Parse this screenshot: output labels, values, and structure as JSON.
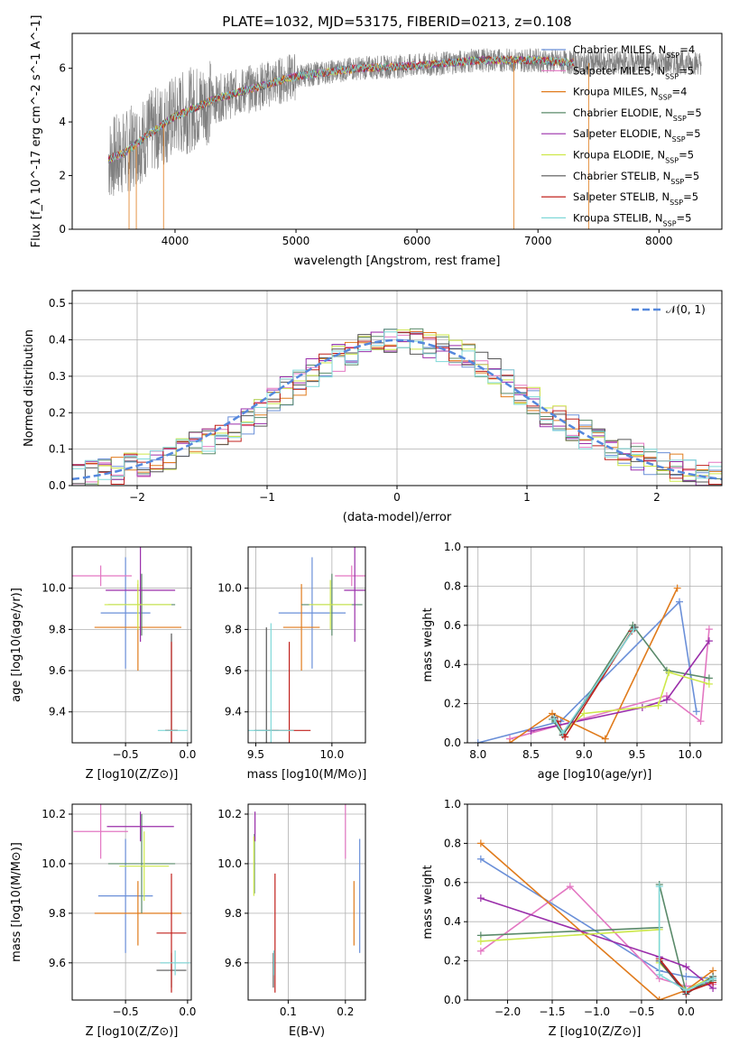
{
  "figure_title": "PLATE=1032, MJD=53175, FIBERID=0213, z=0.108",
  "colors": {
    "Chabrier MILES": "#6a8fd8",
    "Salpeter MILES": "#e377c2",
    "Kroupa MILES": "#e07b1c",
    "Chabrier ELODIE": "#5a8a6a",
    "Salpeter ELODIE": "#9a2eaa",
    "Kroupa ELODIE": "#cde84a",
    "Chabrier STELIB": "#555555",
    "Salpeter STELIB": "#c0201c",
    "Kroupa STELIB": "#7fd8d8",
    "normal_curve": "#5588dd",
    "grid": "#b0b0b0"
  },
  "chart_data": [
    {
      "id": "spectrum",
      "type": "line",
      "xlabel": "wavelength [Angstrom, rest frame]",
      "ylabel": "Flux [f_λ 10^-17 erg cm^-2 s^-1 A^-1]",
      "xlim": [
        3150,
        8520
      ],
      "ylim": [
        0,
        7.3
      ],
      "xticks": [
        4000,
        5000,
        6000,
        7000,
        8000
      ],
      "yticks": [
        0,
        2,
        4,
        6
      ],
      "legend_position": "right",
      "legend": [
        {
          "name": "Chabrier MILES",
          "nssp": "4"
        },
        {
          "name": "Salpeter MILES",
          "nssp": "5"
        },
        {
          "name": "Kroupa MILES",
          "nssp": "4"
        },
        {
          "name": "Chabrier ELODIE",
          "nssp": "5"
        },
        {
          "name": "Salpeter ELODIE",
          "nssp": "5"
        },
        {
          "name": "Kroupa ELODIE",
          "nssp": "5"
        },
        {
          "name": "Chabrier STELIB",
          "nssp": "5"
        },
        {
          "name": "Salpeter STELIB",
          "nssp": "5"
        },
        {
          "name": "Kroupa STELIB",
          "nssp": "5"
        }
      ],
      "continuum": {
        "x": [
          3450,
          3600,
          3800,
          4000,
          4300,
          4600,
          5000,
          5500,
          6000,
          6500,
          7000,
          7300
        ],
        "y": [
          2.6,
          2.9,
          3.6,
          4.2,
          4.8,
          5.2,
          5.7,
          6.0,
          6.1,
          6.3,
          6.3,
          6.2
        ]
      },
      "data_x_range": [
        3450,
        8350
      ]
    },
    {
      "id": "residuals",
      "type": "bar",
      "xlabel": "(data-model)/error",
      "ylabel": "Normed distribution",
      "xlim": [
        -2.5,
        2.5
      ],
      "ylim": [
        0,
        0.535
      ],
      "xticks": [
        -2,
        -1,
        0,
        1,
        2
      ],
      "yticks": [
        0.0,
        0.1,
        0.2,
        0.3,
        0.4,
        0.5
      ],
      "bin_width": 0.1,
      "legend": "𝒩(0, 1)",
      "hist_values": [
        0.03,
        0.03,
        0.04,
        0.04,
        0.05,
        0.06,
        0.07,
        0.08,
        0.09,
        0.11,
        0.12,
        0.14,
        0.16,
        0.18,
        0.2,
        0.23,
        0.26,
        0.28,
        0.31,
        0.33,
        0.35,
        0.36,
        0.38,
        0.39,
        0.4,
        0.4,
        0.4,
        0.39,
        0.38,
        0.36,
        0.35,
        0.33,
        0.31,
        0.28,
        0.26,
        0.23,
        0.2,
        0.18,
        0.16,
        0.14,
        0.12,
        0.11,
        0.09,
        0.08,
        0.07,
        0.06,
        0.05,
        0.04,
        0.04,
        0.03
      ]
    },
    {
      "id": "age_vs_Z",
      "type": "scatter",
      "xlabel": "Z [log10(Z/Z⊙)]",
      "ylabel": "age  [log10(age/yr)]",
      "xlim": [
        -0.93,
        0.03
      ],
      "ylim": [
        9.25,
        10.2
      ],
      "xticks": [
        -0.5,
        0.0
      ],
      "yticks": [
        9.4,
        9.6,
        9.8,
        10.0
      ],
      "points": [
        {
          "series": "Chabrier MILES",
          "x": -0.5,
          "y": 9.88,
          "xerr": 0.2,
          "yerr": 0.27
        },
        {
          "series": "Salpeter MILES",
          "x": -0.7,
          "y": 10.06,
          "xerr": 0.25,
          "yerr": 0.05
        },
        {
          "series": "Kroupa MILES",
          "x": -0.4,
          "y": 9.81,
          "xerr": 0.35,
          "yerr": 0.21
        },
        {
          "series": "Chabrier ELODIE",
          "x": -0.37,
          "y": 9.92,
          "xerr": 0.27,
          "yerr": 0.15
        },
        {
          "series": "Salpeter ELODIE",
          "x": -0.38,
          "y": 9.99,
          "xerr": 0.28,
          "yerr": 0.25
        },
        {
          "series": "Kroupa ELODIE",
          "x": -0.4,
          "y": 9.92,
          "xerr": 0.27,
          "yerr": 0.12
        },
        {
          "series": "Chabrier STELIB",
          "x": -0.13,
          "y": 9.31,
          "xerr": 0.05,
          "yerr": 0.47
        },
        {
          "series": "Salpeter STELIB",
          "x": -0.13,
          "y": 9.31,
          "xerr": 0.05,
          "yerr": 0.43
        },
        {
          "series": "Kroupa STELIB",
          "x": -0.12,
          "y": 9.31,
          "xerr": 0.12,
          "yerr": 0.0
        }
      ]
    },
    {
      "id": "age_vs_mass",
      "type": "scatter",
      "xlabel": "mass [log10(M/M⊙)]",
      "ylabel": "",
      "xlim": [
        9.45,
        10.22
      ],
      "ylim": [
        9.25,
        10.2
      ],
      "xticks": [
        9.5,
        10.0
      ],
      "yticks": [
        9.4,
        9.6,
        9.8,
        10.0
      ],
      "points": [
        {
          "series": "Chabrier MILES",
          "x": 9.87,
          "y": 9.88,
          "xerr": 0.22,
          "yerr": 0.27
        },
        {
          "series": "Salpeter MILES",
          "x": 10.13,
          "y": 10.06,
          "xerr": 0.11,
          "yerr": 0.05
        },
        {
          "series": "Kroupa MILES",
          "x": 9.8,
          "y": 9.81,
          "xerr": 0.12,
          "yerr": 0.21
        },
        {
          "series": "Chabrier ELODIE",
          "x": 10.0,
          "y": 9.92,
          "xerr": 0.2,
          "yerr": 0.15
        },
        {
          "series": "Salpeter ELODIE",
          "x": 10.15,
          "y": 9.99,
          "xerr": 0.07,
          "yerr": 0.25
        },
        {
          "series": "Kroupa ELODIE",
          "x": 9.99,
          "y": 9.92,
          "xerr": 0.14,
          "yerr": 0.12
        },
        {
          "series": "Chabrier STELIB",
          "x": 9.57,
          "y": 9.31,
          "xerr": 0.08,
          "yerr": 0.5
        },
        {
          "series": "Salpeter STELIB",
          "x": 9.72,
          "y": 9.31,
          "xerr": 0.14,
          "yerr": 0.43
        },
        {
          "series": "Kroupa STELIB",
          "x": 9.6,
          "y": 9.31,
          "xerr": 0.15,
          "yerr": 0.52
        }
      ]
    },
    {
      "id": "weight_vs_age",
      "type": "line",
      "xlabel": "age  [log10(age/yr)]",
      "ylabel": "mass weight",
      "xlim": [
        7.9,
        10.3
      ],
      "ylim": [
        0,
        1.0
      ],
      "xticks": [
        8.0,
        8.5,
        9.0,
        9.5,
        10.0
      ],
      "yticks": [
        0.0,
        0.2,
        0.4,
        0.6,
        0.8,
        1.0
      ],
      "series": [
        {
          "name": "Chabrier MILES",
          "x": [
            8.0,
            8.78,
            9.9,
            10.06
          ],
          "y": [
            0.0,
            0.11,
            0.72,
            0.16
          ]
        },
        {
          "name": "Salpeter MILES",
          "x": [
            8.3,
            9.78,
            10.1,
            10.18
          ],
          "y": [
            0.02,
            0.24,
            0.11,
            0.58
          ]
        },
        {
          "name": "Kroupa MILES",
          "x": [
            8.3,
            8.7,
            9.2,
            9.88
          ],
          "y": [
            0.0,
            0.15,
            0.02,
            0.79
          ]
        },
        {
          "name": "Chabrier ELODIE",
          "x": [
            8.7,
            8.8,
            9.46,
            9.78,
            10.18
          ],
          "y": [
            0.12,
            0.04,
            0.6,
            0.37,
            0.33
          ]
        },
        {
          "name": "Salpeter ELODIE",
          "x": [
            8.5,
            9.55,
            9.78,
            10.18
          ],
          "y": [
            0.06,
            0.18,
            0.22,
            0.52
          ]
        },
        {
          "name": "Kroupa ELODIE",
          "x": [
            8.8,
            9.0,
            9.7,
            9.8,
            10.18
          ],
          "y": [
            0.05,
            0.15,
            0.19,
            0.36,
            0.3
          ]
        },
        {
          "name": "Chabrier STELIB",
          "x": [
            8.72,
            8.8,
            9.48
          ],
          "y": [
            0.13,
            0.04,
            0.59
          ]
        },
        {
          "name": "Salpeter STELIB",
          "x": [
            8.75,
            8.82,
            9.45
          ],
          "y": [
            0.11,
            0.03,
            0.57
          ]
        },
        {
          "name": "Kroupa STELIB",
          "x": [
            8.72,
            8.8,
            9.47
          ],
          "y": [
            0.12,
            0.05,
            0.58
          ]
        }
      ]
    },
    {
      "id": "mass_vs_Z",
      "type": "scatter",
      "xlabel": "Z [log10(Z/Z⊙)]",
      "ylabel": "mass [log10(M/M⊙)]",
      "xlim": [
        -0.93,
        0.03
      ],
      "ylim": [
        9.45,
        10.24
      ],
      "xticks": [
        -0.5,
        0.0
      ],
      "yticks": [
        9.6,
        9.8,
        10.0,
        10.2
      ],
      "points": [
        {
          "series": "Chabrier MILES",
          "x": -0.5,
          "y": 9.87,
          "xerr": 0.22,
          "yerr": 0.23
        },
        {
          "series": "Salpeter MILES",
          "x": -0.7,
          "y": 10.13,
          "xerr": 0.22,
          "yerr": 0.11
        },
        {
          "series": "Kroupa MILES",
          "x": -0.4,
          "y": 9.8,
          "xerr": 0.35,
          "yerr": 0.13
        },
        {
          "series": "Chabrier ELODIE",
          "x": -0.37,
          "y": 10.0,
          "xerr": 0.27,
          "yerr": 0.2
        },
        {
          "series": "Salpeter ELODIE",
          "x": -0.38,
          "y": 10.15,
          "xerr": 0.27,
          "yerr": 0.06
        },
        {
          "series": "Kroupa ELODIE",
          "x": -0.35,
          "y": 9.99,
          "xerr": 0.2,
          "yerr": 0.14
        },
        {
          "series": "Chabrier STELIB",
          "x": -0.13,
          "y": 9.57,
          "xerr": 0.12,
          "yerr": 0.07
        },
        {
          "series": "Salpeter STELIB",
          "x": -0.13,
          "y": 9.72,
          "xerr": 0.12,
          "yerr": 0.24
        },
        {
          "series": "Kroupa STELIB",
          "x": -0.1,
          "y": 9.6,
          "xerr": 0.12,
          "yerr": 0.05
        }
      ]
    },
    {
      "id": "mass_vs_ebv",
      "type": "scatter",
      "xlabel": "E(B-V)",
      "ylabel": "",
      "xlim": [
        0.03,
        0.235
      ],
      "ylim": [
        9.45,
        10.24
      ],
      "xticks": [
        0.1,
        0.2
      ],
      "yticks": [
        9.6,
        9.8,
        10.0,
        10.2
      ],
      "points": [
        {
          "series": "Chabrier MILES",
          "x": 0.225,
          "y": 9.87,
          "xerr": 0,
          "yerr": 0.23
        },
        {
          "series": "Salpeter MILES",
          "x": 0.2,
          "y": 10.13,
          "xerr": 0,
          "yerr": 0.11
        },
        {
          "series": "Kroupa MILES",
          "x": 0.215,
          "y": 9.8,
          "xerr": 0,
          "yerr": 0.13
        },
        {
          "series": "Chabrier ELODIE",
          "x": 0.041,
          "y": 10.0,
          "xerr": 0,
          "yerr": 0.12
        },
        {
          "series": "Salpeter ELODIE",
          "x": 0.042,
          "y": 10.15,
          "xerr": 0,
          "yerr": 0.06
        },
        {
          "series": "Kroupa ELODIE",
          "x": 0.04,
          "y": 9.99,
          "xerr": 0,
          "yerr": 0.12
        },
        {
          "series": "Chabrier STELIB",
          "x": 0.074,
          "y": 9.57,
          "xerr": 0,
          "yerr": 0.07
        },
        {
          "series": "Salpeter STELIB",
          "x": 0.077,
          "y": 9.72,
          "xerr": 0,
          "yerr": 0.24
        },
        {
          "series": "Kroupa STELIB",
          "x": 0.075,
          "y": 9.6,
          "xerr": 0,
          "yerr": 0.05
        }
      ]
    },
    {
      "id": "weight_vs_Z",
      "type": "line",
      "xlabel": "Z [log10(Z/Z⊙)]",
      "ylabel": "mass weight",
      "xlim": [
        -2.45,
        0.4
      ],
      "ylim": [
        0,
        1.0
      ],
      "xticks": [
        -2.0,
        -1.5,
        -1.0,
        -0.5,
        0.0
      ],
      "yticks": [
        0.0,
        0.2,
        0.4,
        0.6,
        0.8,
        1.0
      ],
      "series": [
        {
          "name": "Chabrier MILES",
          "x": [
            -2.3,
            -0.3,
            0.0,
            0.3
          ],
          "y": [
            0.72,
            0.15,
            0.12,
            0.11
          ]
        },
        {
          "name": "Salpeter MILES",
          "x": [
            -2.3,
            -1.3,
            -0.3,
            0.0,
            0.3
          ],
          "y": [
            0.25,
            0.58,
            0.11,
            0.07,
            0.08
          ]
        },
        {
          "name": "Kroupa MILES",
          "x": [
            -2.3,
            -0.3,
            0.0,
            0.3
          ],
          "y": [
            0.8,
            0.0,
            0.05,
            0.15
          ]
        },
        {
          "name": "Chabrier ELODIE",
          "x": [
            -2.3,
            -0.3,
            -0.3,
            0.0,
            0.3
          ],
          "y": [
            0.33,
            0.37,
            0.59,
            0.04,
            0.1
          ]
        },
        {
          "name": "Salpeter ELODIE",
          "x": [
            -2.3,
            -0.3,
            0.0,
            0.3
          ],
          "y": [
            0.52,
            0.22,
            0.17,
            0.06
          ]
        },
        {
          "name": "Kroupa ELODIE",
          "x": [
            -2.3,
            -0.3,
            -0.3,
            0.0,
            0.3
          ],
          "y": [
            0.3,
            0.36,
            0.19,
            0.05,
            0.12
          ]
        },
        {
          "name": "Chabrier STELIB",
          "x": [
            -0.3,
            0.0,
            0.3
          ],
          "y": [
            0.2,
            0.03,
            0.12
          ]
        },
        {
          "name": "Salpeter STELIB",
          "x": [
            -0.3,
            0.0,
            0.3
          ],
          "y": [
            0.21,
            0.04,
            0.09
          ]
        },
        {
          "name": "Kroupa STELIB",
          "x": [
            -0.3,
            -0.3,
            0.0,
            0.3
          ],
          "y": [
            0.58,
            0.13,
            0.05,
            0.11
          ]
        }
      ]
    }
  ]
}
